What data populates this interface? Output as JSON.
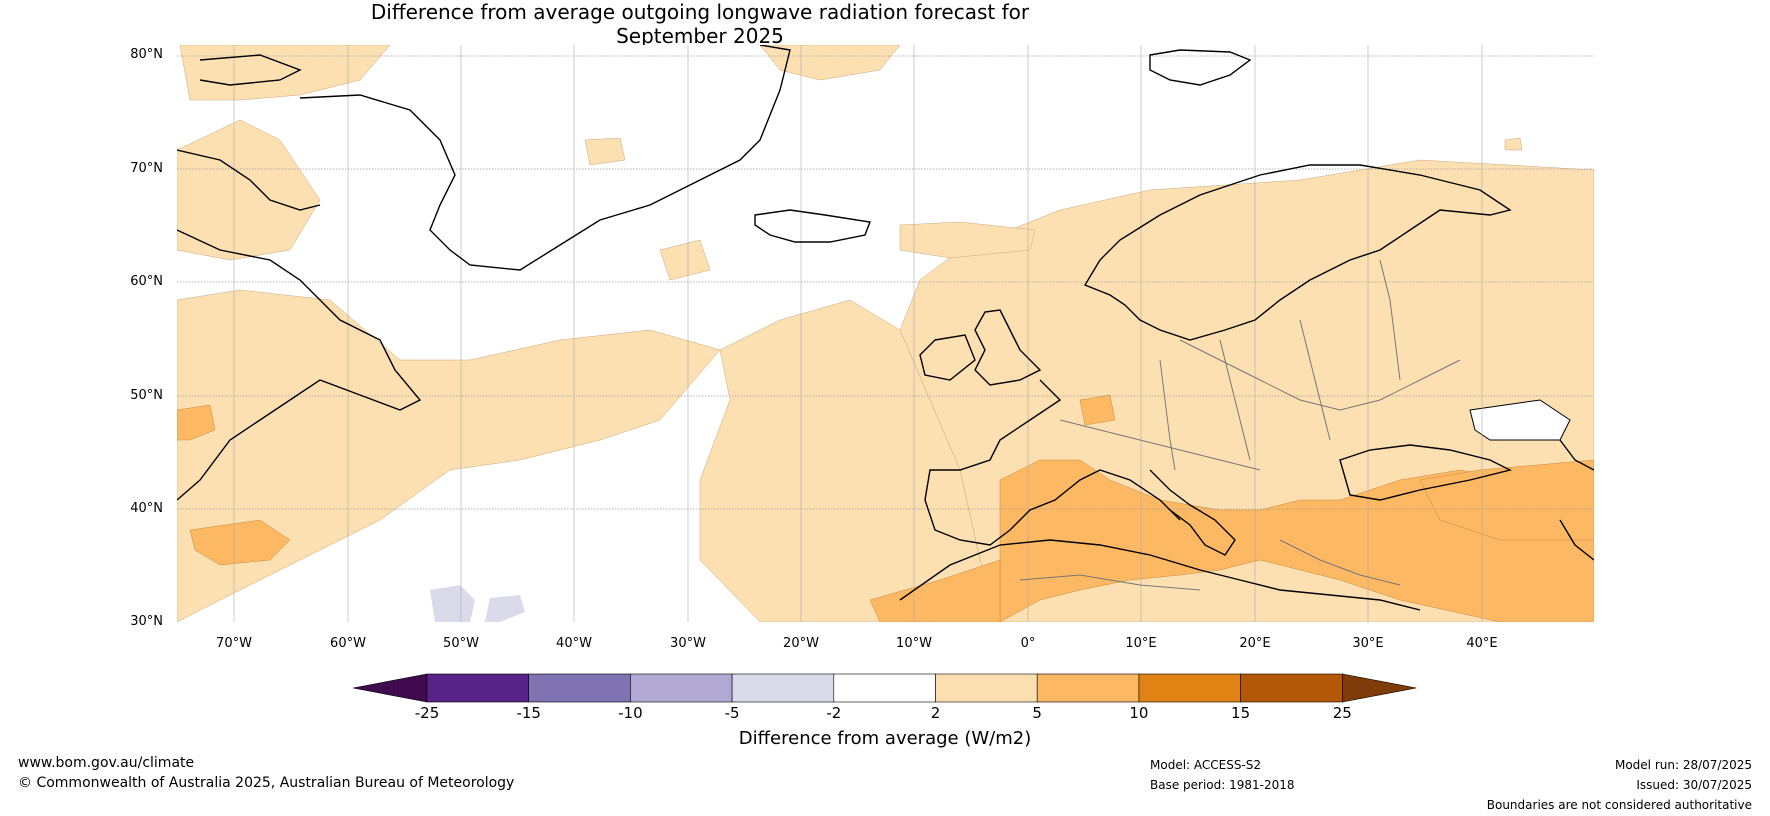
{
  "title_line1": "Difference from average outgoing longwave radiation forecast for",
  "title_line2": "September 2025",
  "y_ticks": [
    "80°N",
    "70°N",
    "60°N",
    "50°N",
    "40°N",
    "30°N"
  ],
  "x_ticks": [
    "70°W",
    "60°W",
    "50°W",
    "40°W",
    "30°W",
    "20°W",
    "10°W",
    "0°",
    "10°E",
    "20°E",
    "30°E",
    "40°E"
  ],
  "colorbar": {
    "labels": [
      "-25",
      "-15",
      "-10",
      "-5",
      "-2",
      "2",
      "5",
      "10",
      "15",
      "25"
    ],
    "colors": [
      "#3f0b4e",
      "#582388",
      "#7f74b1",
      "#b1a9d3",
      "#dadaeb",
      "#ffffff",
      "#fde0b2",
      "#fdb863",
      "#e08214",
      "#b35806",
      "#7f3b08"
    ],
    "title": "Difference from average (W/m2)"
  },
  "footer": {
    "website": "www.bom.gov.au/climate",
    "copyright": "© Commonwealth of Australia 2025, Australian Bureau of Meteorology",
    "model": "Model: ACCESS-S2",
    "base_period": "Base period: 1981-2018",
    "model_run": "Model run: 28/07/2025",
    "issued": "Issued: 30/07/2025",
    "disclaimer": "Boundaries are not considered authoritative"
  }
}
